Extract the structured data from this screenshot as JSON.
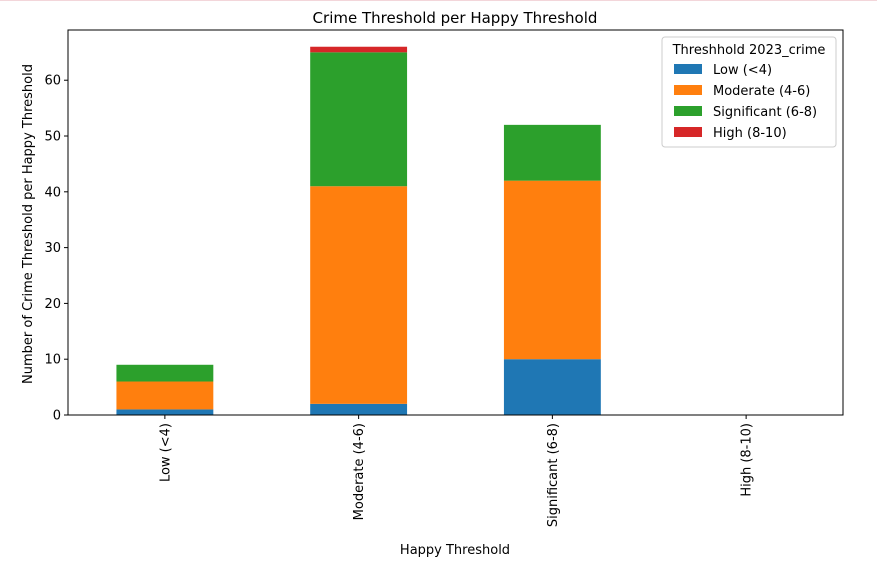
{
  "chart_data": {
    "type": "bar",
    "stacked": true,
    "title": "Crime Threshold per Happy Threshold",
    "xlabel": "Happy Threshold",
    "ylabel": "Number of Crime Threshold per Happy Threshold",
    "categories": [
      "Low (<4)",
      "Moderate (4-6)",
      "Significant (6-8)",
      "High (8-10)"
    ],
    "ylim": [
      0,
      69
    ],
    "yticks": [
      0,
      10,
      20,
      30,
      40,
      50,
      60
    ],
    "grid": false,
    "legend": {
      "title": "Threshhold 2023_crime",
      "placement": "top-right"
    },
    "series": [
      {
        "name": "Low (<4)",
        "color": "#1f77b4",
        "values": [
          1,
          2,
          10,
          0
        ]
      },
      {
        "name": "Moderate (4-6)",
        "color": "#ff7f0e",
        "values": [
          5,
          39,
          32,
          0
        ]
      },
      {
        "name": "Significant (6-8)",
        "color": "#2ca02c",
        "values": [
          3,
          24,
          10,
          0
        ]
      },
      {
        "name": "High (8-10)",
        "color": "#d62728",
        "values": [
          0,
          1,
          0,
          0
        ]
      }
    ]
  }
}
